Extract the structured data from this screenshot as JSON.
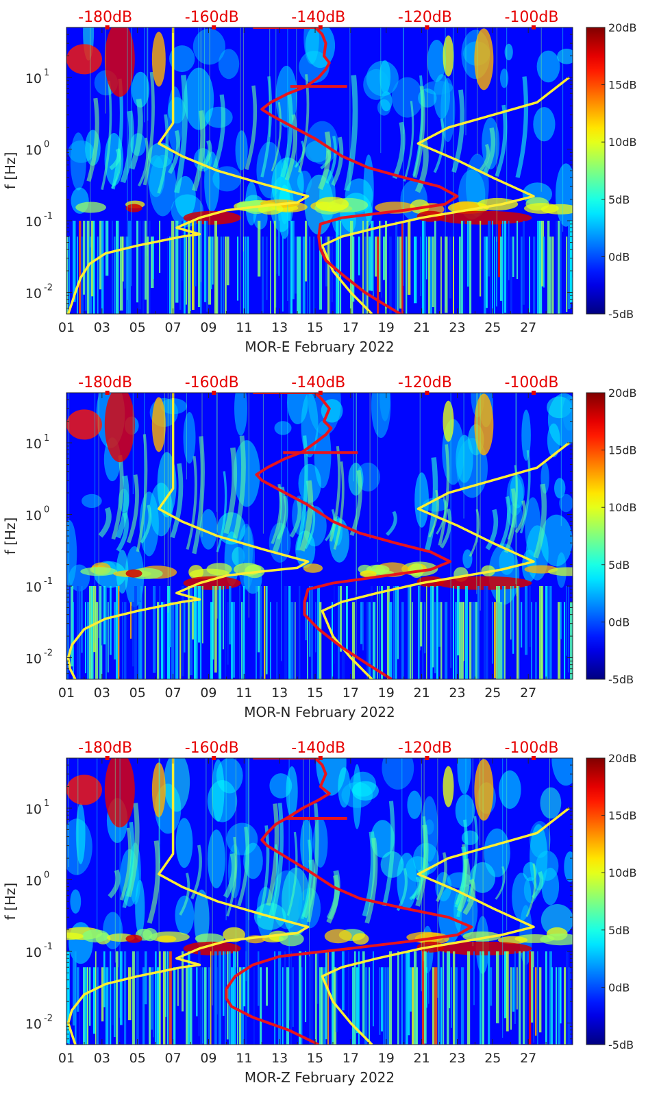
{
  "figure": {
    "shared_axes": {
      "ylabel": "f [Hz]",
      "y_scale": "log",
      "ylim_hz": [
        0.005,
        50
      ],
      "y_ticks": [
        {
          "value": 0.01,
          "base": "10",
          "exp": "-2"
        },
        {
          "value": 0.1,
          "base": "10",
          "exp": "-1"
        },
        {
          "value": 1,
          "base": "10",
          "exp": "0"
        },
        {
          "value": 10,
          "base": "10",
          "exp": "1"
        }
      ],
      "xlim_day": [
        1,
        29.5
      ],
      "x_ticks": [
        "01",
        "03",
        "05",
        "07",
        "09",
        "11",
        "13",
        "15",
        "17",
        "19",
        "21",
        "23",
        "25",
        "27"
      ],
      "top_ticks": [
        "-180dB",
        "-160dB",
        "-140dB",
        "-120dB",
        "-100dB"
      ],
      "top_tick_days": [
        3.3,
        9.3,
        15.3,
        21.3,
        27.3
      ],
      "colorbar_ticks": [
        "20dB",
        "15dB",
        "10dB",
        "5dB",
        "0dB",
        "-5dB"
      ],
      "colorbar_range_db": [
        -5,
        20
      ],
      "colormap": "jet",
      "model_line_color": "#ffee33",
      "psd_line_color": "#e8141c",
      "top_tick_color": "#e60000"
    }
  },
  "chart_data": [
    {
      "type": "heatmap",
      "xlabel": "MOR-E February 2022",
      "ylabel": "f [Hz]",
      "xlim": [
        1,
        29.5
      ],
      "ylim": [
        0.005,
        50
      ],
      "colorbar": {
        "min_db": -5,
        "max_db": 20,
        "ticks": [
          "20dB",
          "15dB",
          "10dB",
          "5dB",
          "0dB",
          "-5dB"
        ]
      },
      "top_axis": {
        "ticks": [
          "-180dB",
          "-160dB",
          "-140dB",
          "-120dB",
          "-100dB"
        ]
      },
      "series": [
        {
          "color": "#ffee33",
          "points": [
            [
              1.1,
              0.005
            ],
            [
              1.3,
              0.007
            ],
            [
              1.5,
              0.01
            ],
            [
              1.8,
              0.016
            ],
            [
              2.3,
              0.025
            ],
            [
              3.2,
              0.035
            ],
            [
              5.0,
              0.045
            ],
            [
              7.5,
              0.06
            ],
            [
              8.5,
              0.065
            ],
            [
              7.2,
              0.08
            ],
            [
              8.5,
              0.11
            ],
            [
              10.0,
              0.14
            ],
            [
              12.0,
              0.16
            ],
            [
              14.0,
              0.18
            ],
            [
              14.6,
              0.22
            ],
            [
              12.0,
              0.33
            ],
            [
              9.5,
              0.5
            ],
            [
              7.5,
              0.8
            ],
            [
              6.2,
              1.2
            ],
            [
              7.0,
              2.3
            ],
            [
              7.0,
              4.5
            ],
            [
              7.0,
              20
            ],
            [
              7.0,
              50
            ]
          ]
        },
        {
          "color": "#ffee33",
          "points": [
            [
              18.2,
              0.005
            ],
            [
              17.0,
              0.01
            ],
            [
              16.0,
              0.02
            ],
            [
              15.4,
              0.045
            ],
            [
              16.5,
              0.06
            ],
            [
              18.5,
              0.08
            ],
            [
              21.0,
              0.11
            ],
            [
              23.5,
              0.14
            ],
            [
              25.5,
              0.17
            ],
            [
              27.3,
              0.22
            ],
            [
              25.0,
              0.4
            ],
            [
              23.0,
              0.7
            ],
            [
              20.8,
              1.2
            ],
            [
              22.5,
              2.0
            ],
            [
              25.0,
              3.0
            ],
            [
              27.5,
              4.5
            ],
            [
              29.3,
              10.0
            ]
          ]
        },
        {
          "color": "#e8141c",
          "points": [
            [
              19.8,
              0.005
            ],
            [
              18.8,
              0.007
            ],
            [
              17.8,
              0.01
            ],
            [
              16.5,
              0.018
            ],
            [
              15.6,
              0.028
            ],
            [
              15.3,
              0.04
            ],
            [
              15.2,
              0.06
            ],
            [
              15.3,
              0.09
            ],
            [
              16.5,
              0.11
            ],
            [
              20.0,
              0.14
            ],
            [
              22.3,
              0.17
            ],
            [
              23.0,
              0.22
            ],
            [
              22.0,
              0.3
            ],
            [
              20.0,
              0.4
            ],
            [
              18.0,
              0.55
            ],
            [
              16.5,
              0.8
            ],
            [
              15.0,
              1.4
            ],
            [
              13.5,
              2.2
            ],
            [
              12.5,
              3.0
            ],
            [
              12.0,
              3.6
            ],
            [
              12.5,
              4.5
            ],
            [
              13.5,
              6.0
            ],
            [
              14.5,
              7.5
            ],
            [
              15.2,
              10.0
            ],
            [
              15.6,
              13.0
            ],
            [
              15.8,
              16.0
            ],
            [
              15.5,
              20.0
            ],
            [
              15.6,
              30.0
            ],
            [
              15.4,
              40.0
            ],
            [
              15.0,
              50.0
            ],
            [
              12.8,
              50.0
            ],
            [
              11.5,
              50.0
            ]
          ]
        },
        {
          "color": "#e8141c",
          "points": [
            [
              13.6,
              7.5
            ],
            [
              16.8,
              7.5
            ]
          ]
        }
      ]
    },
    {
      "type": "heatmap",
      "xlabel": "MOR-N February 2022",
      "ylabel": "f [Hz]",
      "xlim": [
        1,
        29.5
      ],
      "ylim": [
        0.005,
        50
      ],
      "colorbar": {
        "min_db": -5,
        "max_db": 20,
        "ticks": [
          "20dB",
          "15dB",
          "10dB",
          "5dB",
          "0dB",
          "-5dB"
        ]
      },
      "top_axis": {
        "ticks": [
          "-180dB",
          "-160dB",
          "-140dB",
          "-120dB",
          "-100dB"
        ]
      },
      "series": [
        {
          "color": "#ffee33",
          "points": [
            [
              1.5,
              0.005
            ],
            [
              1.2,
              0.007
            ],
            [
              1.1,
              0.01
            ],
            [
              1.3,
              0.015
            ],
            [
              2.0,
              0.025
            ],
            [
              3.2,
              0.035
            ],
            [
              5.0,
              0.045
            ],
            [
              7.5,
              0.06
            ],
            [
              8.5,
              0.065
            ],
            [
              7.2,
              0.08
            ],
            [
              8.5,
              0.11
            ],
            [
              10.0,
              0.14
            ],
            [
              12.0,
              0.16
            ],
            [
              14.0,
              0.18
            ],
            [
              14.6,
              0.22
            ],
            [
              12.0,
              0.33
            ],
            [
              9.5,
              0.5
            ],
            [
              7.5,
              0.8
            ],
            [
              6.2,
              1.2
            ],
            [
              7.0,
              2.3
            ],
            [
              7.0,
              4.5
            ],
            [
              7.0,
              20
            ],
            [
              7.0,
              50
            ]
          ]
        },
        {
          "color": "#ffee33",
          "points": [
            [
              18.2,
              0.005
            ],
            [
              17.0,
              0.01
            ],
            [
              16.0,
              0.02
            ],
            [
              15.4,
              0.045
            ],
            [
              16.5,
              0.06
            ],
            [
              18.5,
              0.08
            ],
            [
              21.0,
              0.11
            ],
            [
              23.5,
              0.14
            ],
            [
              25.5,
              0.17
            ],
            [
              27.3,
              0.22
            ],
            [
              25.0,
              0.4
            ],
            [
              23.0,
              0.7
            ],
            [
              20.8,
              1.2
            ],
            [
              22.5,
              2.0
            ],
            [
              25.0,
              3.0
            ],
            [
              27.5,
              4.5
            ],
            [
              29.3,
              10.0
            ]
          ]
        },
        {
          "color": "#e8141c",
          "points": [
            [
              19.3,
              0.005
            ],
            [
              18.0,
              0.008
            ],
            [
              16.5,
              0.014
            ],
            [
              15.2,
              0.025
            ],
            [
              14.4,
              0.04
            ],
            [
              14.4,
              0.06
            ],
            [
              14.6,
              0.09
            ],
            [
              16.0,
              0.11
            ],
            [
              19.0,
              0.14
            ],
            [
              21.5,
              0.17
            ],
            [
              22.6,
              0.22
            ],
            [
              21.5,
              0.3
            ],
            [
              19.5,
              0.4
            ],
            [
              17.5,
              0.55
            ],
            [
              16.0,
              0.8
            ],
            [
              14.5,
              1.4
            ],
            [
              13.0,
              2.2
            ],
            [
              12.0,
              3.0
            ],
            [
              11.7,
              3.6
            ],
            [
              12.3,
              4.5
            ],
            [
              13.3,
              6.0
            ],
            [
              14.3,
              7.5
            ],
            [
              15.0,
              10.0
            ],
            [
              15.6,
              13.0
            ],
            [
              15.9,
              16.0
            ],
            [
              15.5,
              20.0
            ],
            [
              15.8,
              30.0
            ],
            [
              15.4,
              40.0
            ],
            [
              15.0,
              50.0
            ],
            [
              12.8,
              50.0
            ],
            [
              11.5,
              50.0
            ]
          ]
        },
        {
          "color": "#e8141c",
          "points": [
            [
              13.2,
              7.3
            ],
            [
              17.4,
              7.3
            ]
          ]
        }
      ]
    },
    {
      "type": "heatmap",
      "xlabel": "MOR-Z February 2022",
      "ylabel": "f [Hz]",
      "xlim": [
        1,
        29.5
      ],
      "ylim": [
        0.005,
        50
      ],
      "colorbar": {
        "min_db": -5,
        "max_db": 20,
        "ticks": [
          "20dB",
          "15dB",
          "10dB",
          "5dB",
          "0dB",
          "-5dB"
        ]
      },
      "top_axis": {
        "ticks": [
          "-180dB",
          "-160dB",
          "-140dB",
          "-120dB",
          "-100dB"
        ]
      },
      "series": [
        {
          "color": "#ffee33",
          "points": [
            [
              1.5,
              0.005
            ],
            [
              1.3,
              0.007
            ],
            [
              1.1,
              0.01
            ],
            [
              1.3,
              0.015
            ],
            [
              2.0,
              0.025
            ],
            [
              3.2,
              0.035
            ],
            [
              5.0,
              0.045
            ],
            [
              7.5,
              0.06
            ],
            [
              8.5,
              0.065
            ],
            [
              7.2,
              0.08
            ],
            [
              8.5,
              0.11
            ],
            [
              10.0,
              0.14
            ],
            [
              12.0,
              0.16
            ],
            [
              14.0,
              0.18
            ],
            [
              14.6,
              0.22
            ],
            [
              12.0,
              0.33
            ],
            [
              9.5,
              0.5
            ],
            [
              7.5,
              0.8
            ],
            [
              6.2,
              1.2
            ],
            [
              7.0,
              2.3
            ],
            [
              7.0,
              4.5
            ],
            [
              7.0,
              20
            ],
            [
              7.0,
              50
            ]
          ]
        },
        {
          "color": "#ffee33",
          "points": [
            [
              18.2,
              0.005
            ],
            [
              17.0,
              0.01
            ],
            [
              16.0,
              0.02
            ],
            [
              15.4,
              0.045
            ],
            [
              16.5,
              0.06
            ],
            [
              18.5,
              0.08
            ],
            [
              21.0,
              0.11
            ],
            [
              23.5,
              0.14
            ],
            [
              25.5,
              0.17
            ],
            [
              27.3,
              0.22
            ],
            [
              25.0,
              0.4
            ],
            [
              23.0,
              0.7
            ],
            [
              20.8,
              1.2
            ],
            [
              22.5,
              2.0
            ],
            [
              25.0,
              3.0
            ],
            [
              27.5,
              4.5
            ],
            [
              29.3,
              10.0
            ]
          ]
        },
        {
          "color": "#e8141c",
          "points": [
            [
              15.2,
              0.005
            ],
            [
              13.5,
              0.008
            ],
            [
              11.5,
              0.012
            ],
            [
              10.3,
              0.017
            ],
            [
              10.0,
              0.022
            ],
            [
              10.0,
              0.03
            ],
            [
              10.5,
              0.045
            ],
            [
              11.5,
              0.065
            ],
            [
              13.0,
              0.085
            ],
            [
              17.0,
              0.11
            ],
            [
              20.5,
              0.14
            ],
            [
              23.0,
              0.17
            ],
            [
              23.8,
              0.22
            ],
            [
              22.5,
              0.3
            ],
            [
              20.0,
              0.4
            ],
            [
              17.5,
              0.55
            ],
            [
              16.0,
              0.8
            ],
            [
              14.5,
              1.4
            ],
            [
              13.2,
              2.2
            ],
            [
              12.3,
              3.0
            ],
            [
              12.0,
              3.6
            ],
            [
              12.3,
              4.5
            ],
            [
              12.8,
              6.0
            ],
            [
              13.5,
              7.5
            ],
            [
              14.3,
              10.0
            ],
            [
              15.2,
              13.0
            ],
            [
              15.8,
              16.0
            ],
            [
              15.3,
              20.0
            ],
            [
              15.6,
              30.0
            ],
            [
              15.4,
              40.0
            ],
            [
              15.0,
              50.0
            ],
            [
              12.8,
              50.0
            ],
            [
              11.5,
              50.0
            ]
          ]
        },
        {
          "color": "#e8141c",
          "points": [
            [
              13.4,
              7.2
            ],
            [
              16.8,
              7.2
            ]
          ]
        }
      ]
    }
  ]
}
